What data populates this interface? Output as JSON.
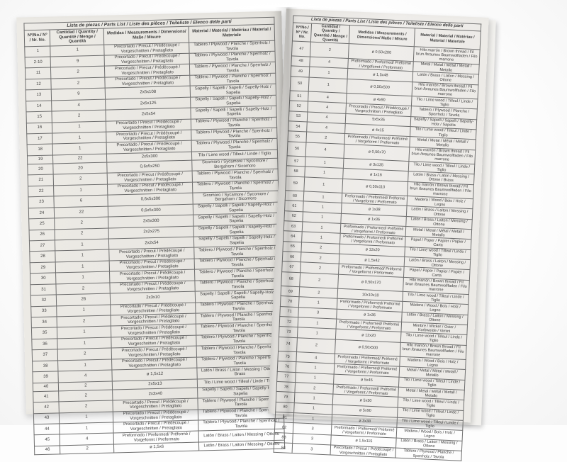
{
  "document": {
    "title": "Lista de piezas / Parts List / Liste des pièces / Teileliste / Elenco delle parti",
    "columns": [
      "Nº/No./ Nº / Nr. No.",
      "Cantidad / Quantity / Quantité / Menge / Quantità",
      "Medidas / Measurements / Dimensions/ Maße / Misure",
      "Material / Material / Matériau / Material / Materiale"
    ]
  },
  "colors": {
    "paper": "#e9e7e2",
    "ink": "#3d3d3d",
    "table_border": "#4c4c4c",
    "background": "#fdfdfd"
  },
  "pages": {
    "left": {
      "rows": [
        [
          "1",
          "1",
          "Precortado / Precut / Prédécoupé / Vorgeschnitten / Pretagliato",
          "Tablero / Plywood / Planche / Sperrholz / Tavola"
        ],
        [
          "2-10",
          "9",
          "Precortado / Precut / Prédécoupé / Vorgeschnitten / Pretagliato",
          "Tablero / Plywood / Planche / Sperrholz / Tavola"
        ],
        [
          "11",
          "2",
          "Precortado / Precut / Prédécoupé / Vorgeschnitten / Pretagliato",
          "Tablero / Plywood / Planche / Sperrholz / Tavola"
        ],
        [
          "12",
          "2",
          "Precortado / Precut / Prédécoupé / Vorgeschnitten / Pretagliato",
          "Tablero / Plywood / Planche / Sperrholz / Tavola"
        ],
        [
          "13",
          "9",
          "2x5x108",
          "Sapelly / Sapelli / Sapelli / Sapelly-Holz / Sapelia"
        ],
        [
          "14",
          "4",
          "2x5x125",
          "Sapelly / Sapelli / Sapelli / Sapelly-Holz / Sapelia"
        ],
        [
          "15",
          "2",
          "2x5x54",
          "Sapelly / Sapelli / Sapelli / Sapelly-Holz / Sapelia"
        ],
        [
          "16",
          "1",
          "Precortado / Precut / Prédécoupé / Vorgeschnitten / Pretagliato",
          "Tablero / Plywood / Planche / Sperrholz / Tavola"
        ],
        [
          "17",
          "1",
          "Precortado / Precut / Prédécoupé / Vorgeschnitten / Pretagliato",
          "Tablero / Plywood / Planche / Sperrholz / Tavola"
        ],
        [
          "18",
          "1",
          "Precortado / Precut / Prédécoupé / Vorgeschnitten / Pretagliato",
          "Tablero / Plywood / Planche / Sperrholz / Tavola"
        ],
        [
          "19",
          "22",
          "2x5x300",
          "Tilo / Lime wood / Tilleul / Linde / Tiglio"
        ],
        [
          "20",
          "20",
          "0,6x5x250",
          "Sicomoro / Sycamore / Sycomore / Bergahorn / Sicomoro"
        ],
        [
          "21",
          "2",
          "Precortado / Precut / Prédécoupé / Vorgeschnitten / Pretagliato",
          "Tablero / Plywood / Planche / Sperrholz / Tavola"
        ],
        [
          "22",
          "1",
          "Precortado / Precut / Prédécoupé / Vorgeschnitten / Pretagliato",
          "Tablero / Plywood / Planche / Sperrholz / Tavola"
        ],
        [
          "23",
          "6",
          "0,6x5x300",
          "Sicomoro / Sycamore / Sycomore / Bergahorn / Sicomoro"
        ],
        [
          "24",
          "22",
          "0,6x5x300",
          "Sapelly / Sapelli / Sapelli / Sapelly-Holz / Sapelia"
        ],
        [
          "25",
          "2",
          "2x5x300",
          "Sapelly / Sapelli / Sapelli / Sapelly-Holz / Sapelia"
        ],
        [
          "26",
          "2",
          "2x2x275",
          "Sapelly / Sapelli / Sapelli / Sapelly-Holz / Sapelia"
        ],
        [
          "27",
          "1",
          "2x2x54",
          "Sapelly / Sapelli / Sapelli / Sapelly-Holz / Sapelia"
        ],
        [
          "28",
          "1",
          "Precortado / Precut / Prédécoupé / Vorgeschnitten / Pretagliato",
          "Tablero / Plywood / Planche / Sperrholz / Tavola"
        ],
        [
          "29",
          "1",
          "Precortado / Precut / Prédécoupé / Vorgeschnitten / Pretagliato",
          "Tablero / Plywood / Planche / Sperrholz / Tavola"
        ],
        [
          "30",
          "1",
          "Precortado / Precut / Prédécoupé / Vorgeschnitten / Pretagliato",
          "Tablero / Plywood / Planche / Sperrholz / Tavola"
        ],
        [
          "31",
          "2",
          "Precortado / Precut / Prédécoupé / Vorgeschnitten / Pretagliato",
          "Tablero / Plywood / Planche / Sperrholz / Tavola"
        ],
        [
          "32",
          "26",
          "2x3x10",
          "Sapelly / Sapelli / Sapelli / Sapelly-Holz / Sapelia"
        ],
        [
          "33",
          "1",
          "Precortado / Precut / Prédécoupé / Vorgeschnitten / Pretagliato",
          "Tablero / Plywood / Planche / Sperrholz / Tavola"
        ],
        [
          "34",
          "2",
          "Precortado / Precut / Prédécoupé / Vorgeschnitten / Pretagliato",
          "Tablero / Plywood / Planche / Sperrholz / Tavola"
        ],
        [
          "35",
          "1",
          "Precortado / Precut / Prédécoupé / Vorgeschnitten / Pretagliato",
          "Tablero / Plywood / Planche / Sperrholz / Tavola"
        ],
        [
          "36",
          "1",
          "Precortado / Precut / Prédécoupé / Vorgeschnitten / Pretagliato",
          "Tablero / Plywood / Planche / Sperrholz / Tavola"
        ],
        [
          "37",
          "2",
          "Precortado / Precut / Prédécoupé / Vorgeschnitten / Pretagliato",
          "Tablero / Plywood / Planche / Sperrholz / Tavola"
        ],
        [
          "38",
          "1",
          "Precortado / Precut / Prédécoupé / Vorgeschnitten / Pretagliato",
          "Tablero / Plywood / Planche / Sperrholz / Tavola"
        ],
        [
          "39",
          "4",
          "ø 1,5x12",
          "Latón / Brass / Laton / Messing / Ottone / Brass"
        ],
        [
          "40",
          "2",
          "2x5x13",
          "Tilo / Lime wood / Tilleul / Linde / Tiglio"
        ],
        [
          "41",
          "2",
          "2x3x40",
          "Sapelly / Sapelli / Sapelli / Sapelly-Holz / Sapelia"
        ],
        [
          "42",
          "2",
          "Precortado / Precut / Prédécoupé / Vorgeschnitten / Pretagliato",
          "Tablero / Plywood / Planche / Sperrholz / Tavola"
        ],
        [
          "43",
          "1",
          "Precortado / Precut / Prédécoupé / Vorgeschnitten / Pretagliato",
          "Tablero / Plywood / Planche / Sperrholz / Tavola"
        ],
        [
          "44",
          "1",
          "Precortado / Precut / Prédécoupé / Vorgeschnitten / Pretagliato",
          "Tablero / Plywood / Planche / Sperrholz / Tavola"
        ],
        [
          "45",
          "4",
          "Preformado / Preformed/ Préformé / Vorgeformt / Preformato",
          "Latón / Brass / Laiton / Messing / Ottone"
        ],
        [
          "46",
          "2",
          "ø 1,5x6",
          "Latón / Brass / Laiton / Messing / Ottone"
        ]
      ]
    },
    "right": {
      "rows": [
        [
          "47",
          "2",
          "ø 0,50x200",
          "Hilo marrón / Brown thread / Fil brun /braunes Baumwollfaden / Filo marrone"
        ],
        [
          "48",
          "4",
          "Preformado / Preformed/ Préformé / Vorgeformt / Preformato",
          "Metal / Metal / Métal / Metall / Metallo"
        ],
        [
          "49",
          "1",
          "ø 1,5x48",
          "Latón / Brass / Laiton / Messing / Ottone"
        ],
        [
          "50",
          "1",
          "ø 0,50x500",
          "Hilo marrón / Brown thread / Fil brun /braunes Baumwollfaden / Filo marrone"
        ],
        [
          "51",
          "4",
          "ø 4x90",
          "Tilo / Lime wood / Tilleul / Linde / Tiglio"
        ],
        [
          "52",
          "4",
          "Precortado / Precut / Prédécoupé / Vorgeschnitten / Pretagliato",
          "Tablero / Plywood / Planche / Sperrholz / Tavola"
        ],
        [
          "53",
          "4",
          "5x5x35",
          "Sapelly / Sapelli / Sapelli / Sapelly-Holz / Sapelia"
        ],
        [
          "54",
          "4",
          "ø 4x15",
          "Tilo / Lime wood / Tilleul / Linde / Tiglio"
        ],
        [
          "55",
          "2",
          "Preformado / Preformed/ Préformé / Vorgeformt / Preformato",
          "Metal / Metal / Métal / Metall / Metallo"
        ],
        [
          "56",
          "4",
          "ø 0,50x70",
          "Hilo marrón / Brown thread / Fil brun /braunes Baumwollfaden / Filo marrone"
        ],
        [
          "57",
          "1",
          "ø 3x135",
          "Tilo / Lime wood / Tilleul / Linde / Tiglio"
        ],
        [
          "58",
          "1",
          "ø 1x16",
          "Latón / Brass / Laton / Messing / Ottone / Brass"
        ],
        [
          "59",
          "1",
          "ø 0,50x110",
          "Hilo marrón / Brown thread / Fil brun /braunes Baumwollfaden / Filo marrone"
        ],
        [
          "60",
          "1",
          "Preformado / Preformed/ Préformé / Vorgeformt / Preformato",
          "Madera / Wood / Bois / Holz / Legno"
        ],
        [
          "61",
          "1",
          "ø 1x38",
          "Latón / Brass / Laiton / Messing / Ottone"
        ],
        [
          "62",
          "1",
          "ø 1x36",
          "Latón / Brass / Laiton / Messing / Ottone"
        ],
        [
          "63",
          "1",
          "Preformado / Preformed/ Préformé / Vorgeformt / Preformato",
          "Metal / Metal / Métal / Metall / Metallo"
        ],
        [
          "64",
          "1",
          "Preformado / Preformed/ Préformé / Vorgeformt / Preformato",
          "Papel / Paper / Papier / Papier / Carta"
        ],
        [
          "65",
          "2",
          "ø 12x20",
          "Tilo / Lime wood / Tilleul / Linde / Tiglio"
        ],
        [
          "66",
          "2",
          "ø 1,5x42",
          "Latón / Brass / Laiton / Messing / Ottone"
        ],
        [
          "67",
          "2",
          "Preformado / Preformed/ Préformé / Vorgeformt / Preformato",
          "Papel / Paper / Papier / Papier / Carta"
        ],
        [
          "68",
          "2",
          "ø 0,50x170",
          "Hilo marrón / Brown thread / Fil brun /braunes Baumwollfaden / Filo marrone"
        ],
        [
          "69",
          "2",
          "10x10x10",
          "Tilo / Lime wood / Tilleul / Linde / Tiglio"
        ],
        [
          "70",
          "1",
          "Preformado / Preformed/ Préformé / Vorgeformt / Preformato",
          "Madera / Wood / Bois / Holz / Legno"
        ],
        [
          "71",
          "3",
          "ø 1x36",
          "Latón / Brass / Laiton / Messing / Ottone"
        ],
        [
          "72",
          "1",
          "Preformado / Preformed/ Préformé / Vorgeformt / Preformato",
          "Mimbre / Wicker / Osier / Korbweide / Vimini"
        ],
        [
          "73",
          "1",
          "ø 12x20",
          "Tilo / Lime wood / Tilleul / Linde / Tiglio"
        ],
        [
          "74",
          "2",
          "ø 0,50x500",
          "Hilo marrón / Brown thread / Fil brun /braunes Baumwollfaden / Filo marrone"
        ],
        [
          "75",
          "4",
          "Preformado / Preformed/ Préformé / Vorgeformt / Preformato",
          "Madera / Wood / Bois / Holz / Legno"
        ],
        [
          "76",
          "1",
          "Preformado / Preformed/ Préformé / Vorgeformt / Preformato",
          "Metal / Metal / Métal / Metall / Metallo"
        ],
        [
          "77",
          "1",
          "ø 5x45",
          "Tilo / Lime wood / Tilleul / Linde / Tiglio"
        ],
        [
          "78",
          "2",
          "Preformado / Preformed/ Préformé / Vorgeformt / Preformato",
          "Metal / Metal / Métal / Metall / Metallo"
        ],
        [
          "79",
          "1",
          "ø 5x30",
          "Tilo / Lime wood / Tilleul / Linde / Tiglio"
        ],
        [
          "80",
          "1",
          "ø 5x90",
          "Tilo / Lime wood / Tilleul / Linde / Tiglio"
        ],
        [
          "81",
          "1",
          "ø 3x38",
          "Tilo / Lime wood / Tilleul / Linde / Tiglio"
        ],
        [
          "82",
          "3",
          "Preformado / Preformed/ Préformé / Vorgeformt / Preformato",
          "Madera / Wood / Bois / Holz / Legno"
        ],
        [
          "83",
          "3",
          "ø 1,5x115",
          "Latón / Brass / Laiton / Messing / Ottone"
        ],
        [
          "84",
          "3",
          "Precortado / Precut / Prédécoupé / Vorgeschnitten / Pretagliato",
          "Tablero / Plywood / Planche / Sperrholz / Tavola"
        ]
      ]
    }
  }
}
